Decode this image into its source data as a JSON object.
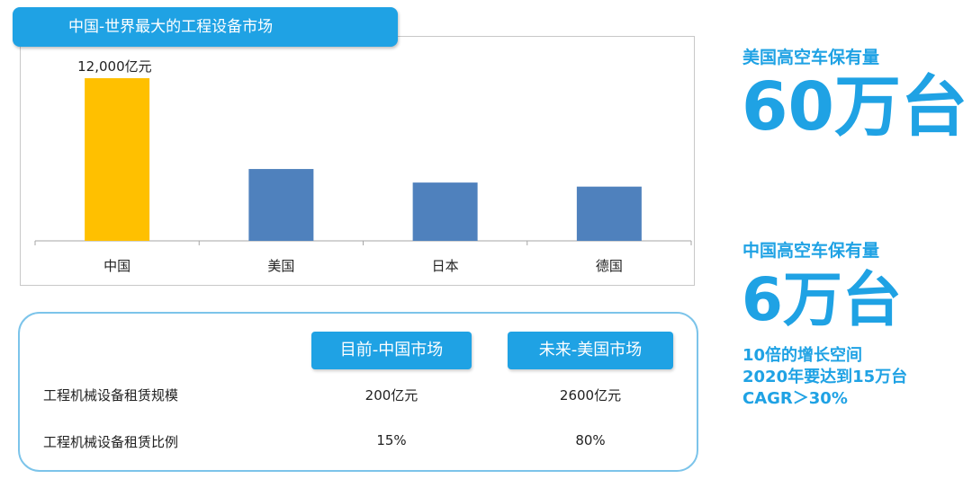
{
  "chart_title": "中国-世界最大的工程设备市场",
  "chart_data": {
    "type": "bar",
    "categories": [
      "中国",
      "美国",
      "日本",
      "德国"
    ],
    "values": [
      12000,
      5300,
      4300,
      4000
    ],
    "colors": [
      "#ffc000",
      "#4f81bd",
      "#4f81bd",
      "#4f81bd"
    ],
    "data_labels": [
      "12,000亿元",
      "",
      "",
      ""
    ],
    "ylim": [
      0,
      12000
    ],
    "grid": false
  },
  "table": {
    "headers": [
      "目前-中国市场",
      "未来-美国市场"
    ],
    "rows": [
      {
        "label": "工程机械设备租赁规模",
        "values": [
          "200亿元",
          "2600亿元"
        ]
      },
      {
        "label": "工程机械设备租赁比例",
        "values": [
          "15%",
          "80%"
        ]
      }
    ]
  },
  "stats": {
    "us_label": "美国高空车保有量",
    "us_value": "60万台",
    "cn_label": "中国高空车保有量",
    "cn_value": "6万台",
    "notes": [
      "10倍的增长空间",
      "2020年要达到15万台",
      "CAGR＞30%"
    ]
  },
  "theme": {
    "accent": "#1fa2e4",
    "highlight": "#ffc000",
    "bar": "#4f81bd"
  }
}
